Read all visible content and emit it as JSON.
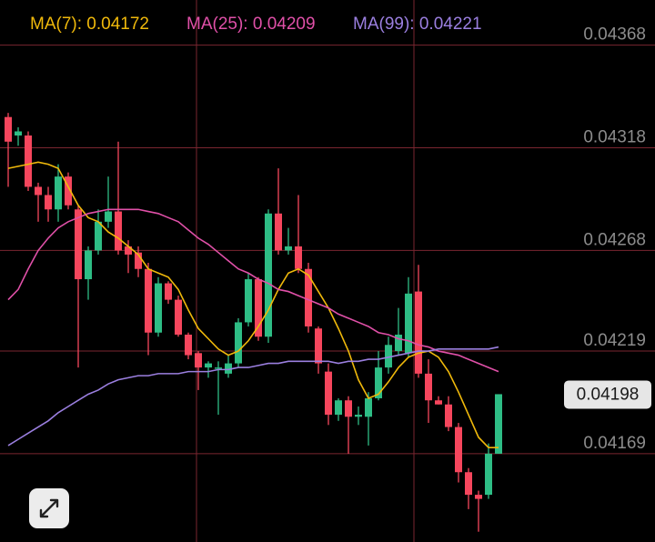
{
  "chart_data": {
    "type": "candlestick",
    "open": [
      0.04333,
      0.04324,
      0.04324,
      0.04299,
      0.04295,
      0.04288,
      0.04304,
      0.04288,
      0.04254,
      0.04268,
      0.04282,
      0.04287,
      0.0427,
      0.04267,
      0.04259,
      0.04228,
      0.04252,
      0.04244,
      0.04227,
      0.04218,
      0.04211,
      0.04211,
      0.04208,
      0.04213,
      0.04233,
      0.04254,
      0.04226,
      0.04286,
      0.04268,
      0.0427,
      0.04259,
      0.0423,
      0.04209,
      0.04188,
      0.04195,
      0.04187,
      0.04187,
      0.04196,
      0.04211,
      0.04219,
      0.04218,
      0.04248,
      0.04208,
      0.04195,
      0.04193,
      0.04182,
      0.0416,
      0.04149,
      0.04149,
      0.04169
    ],
    "high": [
      0.04335,
      0.04328,
      0.04326,
      0.04301,
      0.04299,
      0.0431,
      0.04306,
      0.0429,
      0.0427,
      0.04288,
      0.04304,
      0.04321,
      0.04273,
      0.0427,
      0.04262,
      0.04255,
      0.04253,
      0.04246,
      0.04228,
      0.04219,
      0.04214,
      0.04214,
      0.04217,
      0.04235,
      0.04257,
      0.04255,
      0.04288,
      0.04308,
      0.04279,
      0.04295,
      0.04262,
      0.04231,
      0.04213,
      0.04196,
      0.04197,
      0.04192,
      0.04199,
      0.04219,
      0.04226,
      0.0424,
      0.04255,
      0.04261,
      0.04215,
      0.04197,
      0.04197,
      0.04184,
      0.04162,
      0.04151,
      0.04174,
      0.04198
    ],
    "low": [
      0.04299,
      0.04319,
      0.04297,
      0.04282,
      0.04282,
      0.04282,
      0.04288,
      0.04211,
      0.04244,
      0.04266,
      0.04279,
      0.04266,
      0.04257,
      0.04255,
      0.04217,
      0.04226,
      0.04242,
      0.04226,
      0.04215,
      0.042,
      0.04206,
      0.04188,
      0.04206,
      0.04211,
      0.04231,
      0.04224,
      0.04223,
      0.04266,
      0.04266,
      0.04257,
      0.04228,
      0.04208,
      0.04183,
      0.04185,
      0.04169,
      0.04183,
      0.04173,
      0.04195,
      0.04208,
      0.04217,
      0.04216,
      0.04206,
      0.04184,
      0.04193,
      0.0418,
      0.04155,
      0.04142,
      0.04131,
      0.04147,
      0.04169
    ],
    "close": [
      0.04321,
      0.04326,
      0.04299,
      0.04295,
      0.04288,
      0.04304,
      0.0429,
      0.04254,
      0.04268,
      0.04282,
      0.04287,
      0.04268,
      0.04266,
      0.04259,
      0.04228,
      0.04252,
      0.04244,
      0.04227,
      0.04217,
      0.04211,
      0.04213,
      0.04211,
      0.04213,
      0.04233,
      0.04254,
      0.04226,
      0.04286,
      0.04268,
      0.0427,
      0.04259,
      0.04231,
      0.04213,
      0.04188,
      0.04195,
      0.04187,
      0.04188,
      0.04196,
      0.04211,
      0.04222,
      0.04227,
      0.04247,
      0.04208,
      0.04195,
      0.04193,
      0.04182,
      0.0416,
      0.04149,
      0.04147,
      0.04169,
      0.04198
    ],
    "up_color": "#2ebd85",
    "down_color": "#f6465d",
    "series": [
      {
        "name": "MA(7): 0.04172",
        "color": "#f0b90b",
        "values": [
          0.04308,
          0.04309,
          0.0431,
          0.04311,
          0.0431,
          0.04308,
          0.04299,
          0.0429,
          0.04284,
          0.04282,
          0.04277,
          0.04274,
          0.0427,
          0.04266,
          0.04259,
          0.04257,
          0.04255,
          0.04249,
          0.04239,
          0.0423,
          0.04225,
          0.0422,
          0.04217,
          0.04219,
          0.04224,
          0.04231,
          0.04239,
          0.04249,
          0.04257,
          0.04259,
          0.04256,
          0.04248,
          0.0424,
          0.0423,
          0.04219,
          0.04205,
          0.04196,
          0.04198,
          0.04204,
          0.04211,
          0.04216,
          0.04218,
          0.04219,
          0.04216,
          0.04209,
          0.04199,
          0.04188,
          0.04177,
          0.04172,
          0.04172
        ]
      },
      {
        "name": "MA(25): 0.04209",
        "color": "#e050a8",
        "values": [
          0.04244,
          0.04249,
          0.04259,
          0.04268,
          0.04274,
          0.04279,
          0.04282,
          0.04284,
          0.04286,
          0.04287,
          0.04288,
          0.04288,
          0.04288,
          0.04288,
          0.04287,
          0.04286,
          0.04284,
          0.04282,
          0.04278,
          0.04274,
          0.04271,
          0.04267,
          0.04263,
          0.04259,
          0.04257,
          0.04254,
          0.04252,
          0.04249,
          0.04248,
          0.04246,
          0.04244,
          0.04242,
          0.0424,
          0.04237,
          0.04235,
          0.04233,
          0.04231,
          0.04228,
          0.04227,
          0.04225,
          0.04224,
          0.04222,
          0.04221,
          0.04219,
          0.04218,
          0.04217,
          0.04215,
          0.04213,
          0.04211,
          0.04209
        ]
      },
      {
        "name": "MA(99): 0.04221",
        "color": "#9b7fe0",
        "values": [
          0.04173,
          0.04176,
          0.04179,
          0.04182,
          0.04185,
          0.04189,
          0.04192,
          0.04195,
          0.04198,
          0.042,
          0.04203,
          0.04205,
          0.04206,
          0.04207,
          0.04207,
          0.04208,
          0.04208,
          0.04208,
          0.04209,
          0.04209,
          0.04209,
          0.0421,
          0.0421,
          0.04211,
          0.04211,
          0.04212,
          0.04213,
          0.04213,
          0.04214,
          0.04214,
          0.04214,
          0.04214,
          0.04214,
          0.04213,
          0.04214,
          0.04214,
          0.04215,
          0.04215,
          0.04216,
          0.04217,
          0.04218,
          0.04219,
          0.04219,
          0.0422,
          0.0422,
          0.0422,
          0.0422,
          0.0422,
          0.0422,
          0.04221
        ]
      }
    ],
    "last_price": 0.04198,
    "ylim": [
      0.04126,
      0.0439
    ],
    "yticks": [
      0.04368,
      0.04318,
      0.04268,
      0.04219,
      0.04169
    ],
    "grid": true
  }
}
